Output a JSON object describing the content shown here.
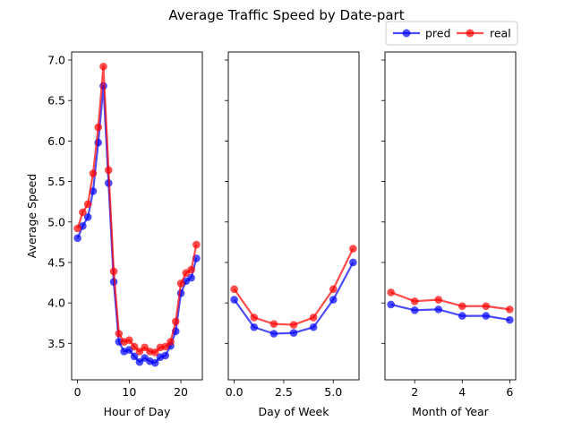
{
  "chart_data": {
    "type": "line",
    "title": "Average Traffic Speed by Date-part",
    "legend": {
      "placement": "top-right",
      "entries": [
        "pred",
        "real"
      ]
    },
    "colors": {
      "pred": "#0000ff",
      "real": "#ff0000"
    },
    "ylabel": "Average Speed",
    "ylim": [
      3.05,
      7.1
    ],
    "yticks": [
      "3.5",
      "4.0",
      "4.5",
      "5.0",
      "5.5",
      "6.0",
      "6.5",
      "7.0"
    ],
    "grid": false,
    "panels": [
      {
        "xlabel": "Hour of Day",
        "xlim": [
          -1.15,
          24.15
        ],
        "xticks": [
          "0",
          "10",
          "20"
        ],
        "x": [
          0,
          1,
          2,
          3,
          4,
          5,
          6,
          7,
          8,
          9,
          10,
          11,
          12,
          13,
          14,
          15,
          16,
          17,
          18,
          19,
          20,
          21,
          22,
          23
        ],
        "series": [
          {
            "name": "pred",
            "values": [
              4.8,
              4.95,
              5.06,
              5.38,
              5.98,
              6.68,
              5.48,
              4.26,
              3.52,
              3.4,
              3.42,
              3.34,
              3.27,
              3.32,
              3.28,
              3.26,
              3.33,
              3.35,
              3.47,
              3.65,
              4.12,
              4.27,
              4.31,
              4.55
            ]
          },
          {
            "name": "real",
            "values": [
              4.92,
              5.12,
              5.22,
              5.6,
              6.17,
              6.92,
              5.64,
              4.39,
              3.62,
              3.52,
              3.54,
              3.46,
              3.4,
              3.45,
              3.4,
              3.39,
              3.45,
              3.46,
              3.52,
              3.77,
              4.24,
              4.37,
              4.41,
              4.72
            ]
          }
        ]
      },
      {
        "xlabel": "Day of Week",
        "xlim": [
          -0.3,
          6.3
        ],
        "xticks": [
          "0.0",
          "2.5",
          "5.0"
        ],
        "x": [
          0,
          1,
          2,
          3,
          4,
          5,
          6
        ],
        "series": [
          {
            "name": "pred",
            "values": [
              4.04,
              3.7,
              3.62,
              3.63,
              3.7,
              4.04,
              4.5
            ]
          },
          {
            "name": "real",
            "values": [
              4.17,
              3.82,
              3.74,
              3.73,
              3.82,
              4.17,
              4.67
            ]
          }
        ]
      },
      {
        "xlabel": "Month of Year",
        "xlim": [
          0.75,
          6.25
        ],
        "xticks": [
          "2",
          "4",
          "6"
        ],
        "x": [
          1,
          2,
          3,
          4,
          5,
          6
        ],
        "series": [
          {
            "name": "pred",
            "values": [
              3.98,
              3.91,
              3.92,
              3.84,
              3.84,
              3.79
            ]
          },
          {
            "name": "real",
            "values": [
              4.13,
              4.02,
              4.04,
              3.96,
              3.96,
              3.92
            ]
          }
        ]
      }
    ]
  }
}
